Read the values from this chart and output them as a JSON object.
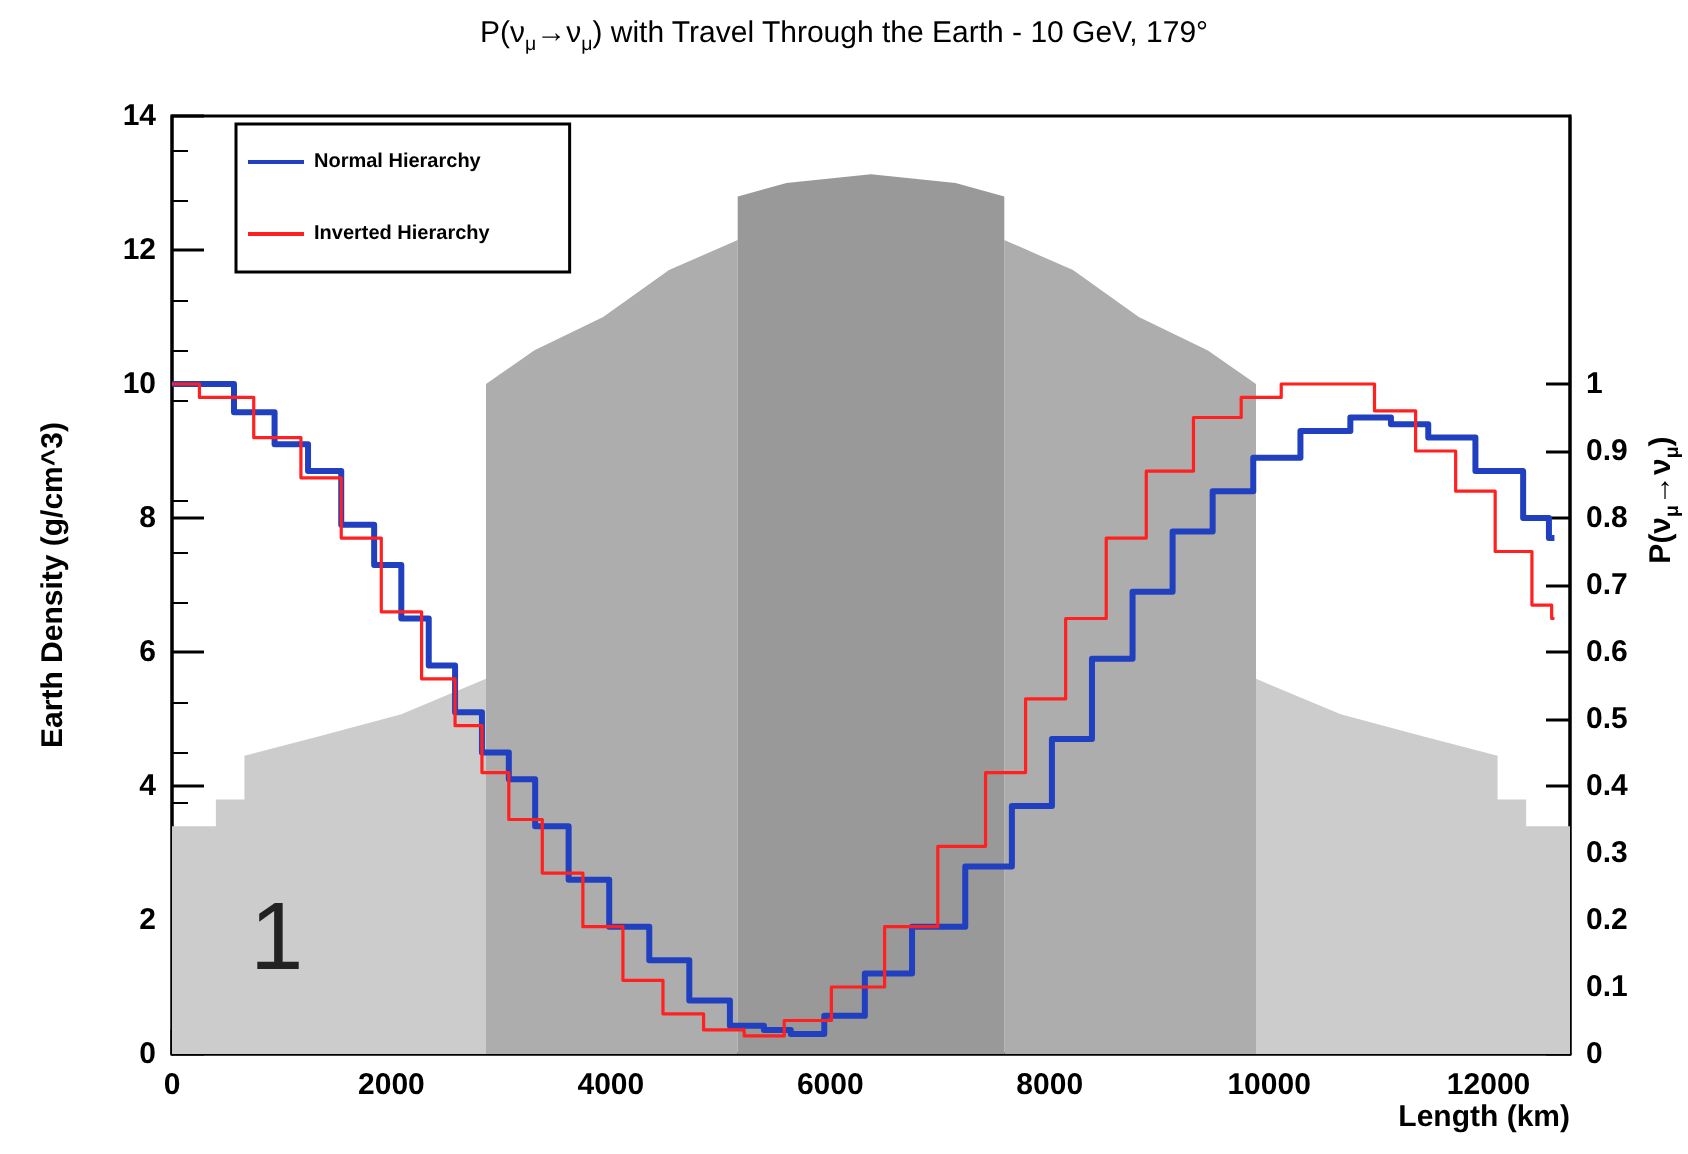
{
  "chart_data": {
    "type": "step",
    "title": "P(ν$_{μ}$→ν$_{μ}$) with Travel Through the Earth - 10 GeV, 179°",
    "xlabel": "Length (km)",
    "ylabel": "Earth Density (g/cm^3)",
    "y2label": "P(ν$_{μ}$→ν$_{μ}$)",
    "annotations": [
      "1"
    ],
    "xlim": [
      0,
      12742
    ],
    "xticks": [
      0,
      2000,
      4000,
      6000,
      8000,
      10000,
      12000
    ],
    "ylim": [
      0,
      14
    ],
    "yticks": [
      0,
      2,
      4,
      6,
      8,
      10,
      12,
      14
    ],
    "y2lim": [
      0,
      1.4
    ],
    "y2ticks": [
      0,
      0.1,
      0.2,
      0.3,
      0.4,
      0.5,
      0.6,
      0.7,
      0.8,
      0.9,
      1
    ],
    "grid": false,
    "legend": "top left",
    "marker": "none",
    "series": [
      {
        "type": "area",
        "color": "#cccccc",
        "x": [
          0,
          400,
          400,
          660,
          660,
          1360,
          2090,
          2862,
          6371,
          9880,
          10652,
          11382,
          12082,
          12082,
          12342,
          12342,
          12742
        ],
        "values": [
          3.4,
          3.4,
          3.8,
          3.8,
          4.45,
          4.75,
          5.07,
          5.6,
          null,
          5.6,
          5.07,
          4.75,
          4.45,
          3.8,
          3.8,
          3.4,
          3.4
        ]
      },
      {
        "type": "area",
        "color": "#adadad",
        "x": [
          2862,
          3300,
          3930,
          4530,
          5156,
          6371,
          7586,
          8212,
          8812,
          9442,
          9880
        ],
        "values": [
          10.0,
          10.5,
          11.0,
          11.7,
          12.15,
          null,
          12.15,
          11.7,
          11.0,
          10.5,
          10.0
        ]
      },
      {
        "type": "area",
        "color": "#999999",
        "x": [
          5156,
          5600,
          6371,
          7142,
          7586
        ],
        "values": [
          12.8,
          13.0,
          13.13,
          13.0,
          12.8
        ]
      },
      {
        "name": "Normal Hierarchy",
        "color": "#2040c0",
        "axis": "y2",
        "x": [
          0,
          380,
          750,
          1120,
          1360,
          1725,
          1960,
          2220,
          2460,
          2700,
          2950,
          3190,
          3430,
          3800,
          4170,
          4530,
          4900,
          5270,
          5520,
          5760,
          6130,
          6500,
          6990,
          7470,
          7840,
          8200,
          8570,
          8940,
          9300,
          9670,
          10040,
          10530,
          10950,
          11270,
          11630,
          12130,
          12500,
          12600
        ],
        "values": [
          1.0,
          1.0,
          0.958,
          0.91,
          0.87,
          0.79,
          0.73,
          0.65,
          0.58,
          0.51,
          0.45,
          0.41,
          0.34,
          0.26,
          0.19,
          0.14,
          0.08,
          0.042,
          0.036,
          0.03,
          0.057,
          0.12,
          0.19,
          0.28,
          0.37,
          0.47,
          0.59,
          0.69,
          0.78,
          0.84,
          0.89,
          0.93,
          0.95,
          0.94,
          0.92,
          0.87,
          0.8,
          0.77
        ]
      },
      {
        "name": "Inverted Hierarchy",
        "color": "#ff2020",
        "axis": "y2",
        "x": [
          0,
          500,
          990,
          1360,
          1725,
          2090,
          2460,
          2700,
          2950,
          3190,
          3560,
          3930,
          4290,
          4660,
          5030,
          5400,
          5760,
          6260,
          6730,
          7230,
          7600,
          7960,
          8330,
          8700,
          9060,
          9560,
          9930,
          10290,
          10770,
          11150,
          11520,
          11880,
          12240,
          12550,
          12600
        ],
        "values": [
          1.0,
          0.98,
          0.92,
          0.86,
          0.77,
          0.66,
          0.56,
          0.49,
          0.42,
          0.35,
          0.27,
          0.19,
          0.11,
          0.06,
          0.036,
          0.027,
          0.05,
          0.1,
          0.19,
          0.31,
          0.42,
          0.53,
          0.65,
          0.77,
          0.87,
          0.95,
          0.98,
          1.0,
          1.0,
          0.96,
          0.9,
          0.84,
          0.75,
          0.67,
          0.65
        ]
      }
    ]
  }
}
